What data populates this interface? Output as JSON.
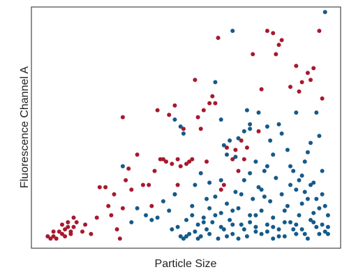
{
  "chart_data": {
    "type": "scatter",
    "title": "",
    "xlabel": "Particle Size",
    "ylabel": "Fluorescence Channel A",
    "xlim": [
      0,
      1
    ],
    "ylim": [
      0,
      1
    ],
    "grid": false,
    "ticks_shown": false,
    "colors": {
      "red": "#a6192e",
      "blue": "#155a8a",
      "frame": "#222222"
    },
    "series": [
      {
        "color": "#a6192e",
        "points": [
          [
            0.02,
            0.03
          ],
          [
            0.03,
            0.02
          ],
          [
            0.04,
            0.03
          ],
          [
            0.05,
            0.02
          ],
          [
            0.04,
            0.05
          ],
          [
            0.06,
            0.05
          ],
          [
            0.07,
            0.04
          ],
          [
            0.08,
            0.03
          ],
          [
            0.07,
            0.08
          ],
          [
            0.08,
            0.06
          ],
          [
            0.09,
            0.07
          ],
          [
            0.11,
            0.07
          ],
          [
            0.1,
            0.05
          ],
          [
            0.09,
            0.09
          ],
          [
            0.12,
            0.09
          ],
          [
            0.11,
            0.11
          ],
          [
            0.1,
            0.04
          ],
          [
            0.14,
            0.05
          ],
          [
            0.15,
            0.08
          ],
          [
            0.17,
            0.04
          ],
          [
            0.19,
            0.11
          ],
          [
            0.2,
            0.24
          ],
          [
            0.22,
            0.24
          ],
          [
            0.23,
            0.16
          ],
          [
            0.25,
            0.21
          ],
          [
            0.24,
            0.12
          ],
          [
            0.26,
            0.06
          ],
          [
            0.27,
            0.02
          ],
          [
            0.28,
            0.15
          ],
          [
            0.29,
            0.27
          ],
          [
            0.3,
            0.32
          ],
          [
            0.28,
            0.54
          ],
          [
            0.31,
            0.23
          ],
          [
            0.33,
            0.38
          ],
          [
            0.35,
            0.25
          ],
          [
            0.37,
            0.25
          ],
          [
            0.38,
            0.16
          ],
          [
            0.39,
            0.31
          ],
          [
            0.41,
            0.36
          ],
          [
            0.4,
            0.57
          ],
          [
            0.42,
            0.36
          ],
          [
            0.43,
            0.35
          ],
          [
            0.44,
            0.55
          ],
          [
            0.46,
            0.59
          ],
          [
            0.45,
            0.34
          ],
          [
            0.47,
            0.25
          ],
          [
            0.46,
            0.21
          ],
          [
            0.47,
            0.36
          ],
          [
            0.48,
            0.33
          ],
          [
            0.49,
            0.49
          ],
          [
            0.5,
            0.34
          ],
          [
            0.51,
            0.35
          ],
          [
            0.52,
            0.36
          ],
          [
            0.53,
            0.7
          ],
          [
            0.54,
            0.54
          ],
          [
            0.55,
            0.49
          ],
          [
            0.56,
            0.57
          ],
          [
            0.57,
            0.35
          ],
          [
            0.58,
            0.6
          ],
          [
            0.59,
            0.63
          ],
          [
            0.6,
            0.6
          ],
          [
            0.61,
            0.88
          ],
          [
            0.62,
            0.23
          ],
          [
            0.63,
            0.25
          ],
          [
            0.64,
            0.41
          ],
          [
            0.66,
            0.36
          ],
          [
            0.68,
            0.31
          ],
          [
            0.67,
            0.4
          ],
          [
            0.7,
            0.36
          ],
          [
            0.69,
            0.44
          ],
          [
            0.71,
            0.41
          ],
          [
            0.73,
            0.81
          ],
          [
            0.75,
            0.48
          ],
          [
            0.76,
            0.66
          ],
          [
            0.78,
            0.91
          ],
          [
            0.8,
            0.9
          ],
          [
            0.82,
            0.85
          ],
          [
            0.81,
            0.81
          ],
          [
            0.83,
            0.87
          ],
          [
            0.86,
            0.67
          ],
          [
            0.88,
            0.76
          ],
          [
            0.9,
            0.69
          ],
          [
            0.89,
            0.65
          ],
          [
            0.92,
            0.73
          ],
          [
            0.93,
            0.7
          ],
          [
            0.94,
            0.75
          ],
          [
            0.96,
            0.91
          ],
          [
            0.97,
            0.62
          ]
        ]
      },
      {
        "color": "#155a8a",
        "points": [
          [
            0.46,
            0.53
          ],
          [
            0.48,
            0.5
          ],
          [
            0.49,
            0.47
          ],
          [
            0.47,
            0.07
          ],
          [
            0.48,
            0.03
          ],
          [
            0.49,
            0.02
          ],
          [
            0.5,
            0.1
          ],
          [
            0.51,
            0.04
          ],
          [
            0.52,
            0.12
          ],
          [
            0.53,
            0.05
          ],
          [
            0.54,
            0.08
          ],
          [
            0.55,
            0.03
          ],
          [
            0.56,
            0.11
          ],
          [
            0.57,
            0.06
          ],
          [
            0.58,
            0.15
          ],
          [
            0.59,
            0.09
          ],
          [
            0.6,
            0.2
          ],
          [
            0.61,
            0.02
          ],
          [
            0.62,
            0.13
          ],
          [
            0.63,
            0.06
          ],
          [
            0.64,
            0.17
          ],
          [
            0.65,
            0.1
          ],
          [
            0.66,
            0.04
          ],
          [
            0.67,
            0.22
          ],
          [
            0.68,
            0.15
          ],
          [
            0.69,
            0.08
          ],
          [
            0.7,
            0.27
          ],
          [
            0.71,
            0.03
          ],
          [
            0.72,
            0.12
          ],
          [
            0.73,
            0.19
          ],
          [
            0.74,
            0.07
          ],
          [
            0.75,
            0.24
          ],
          [
            0.76,
            0.14
          ],
          [
            0.77,
            0.31
          ],
          [
            0.78,
            0.05
          ],
          [
            0.79,
            0.18
          ],
          [
            0.8,
            0.11
          ],
          [
            0.81,
            0.28
          ],
          [
            0.82,
            0.03
          ],
          [
            0.83,
            0.21
          ],
          [
            0.84,
            0.09
          ],
          [
            0.85,
            0.16
          ],
          [
            0.86,
            0.33
          ],
          [
            0.87,
            0.06
          ],
          [
            0.88,
            0.23
          ],
          [
            0.89,
            0.12
          ],
          [
            0.9,
            0.29
          ],
          [
            0.91,
            0.04
          ],
          [
            0.92,
            0.19
          ],
          [
            0.93,
            0.1
          ],
          [
            0.94,
            0.26
          ],
          [
            0.95,
            0.07
          ],
          [
            0.96,
            0.15
          ],
          [
            0.97,
            0.31
          ],
          [
            0.98,
            0.05
          ],
          [
            0.99,
            0.12
          ],
          [
            0.62,
            0.53
          ],
          [
            0.65,
            0.44
          ],
          [
            0.7,
            0.48
          ],
          [
            0.74,
            0.35
          ],
          [
            0.78,
            0.33
          ],
          [
            0.82,
            0.51
          ],
          [
            0.85,
            0.4
          ],
          [
            0.91,
            0.35
          ],
          [
            0.93,
            0.43
          ],
          [
            0.99,
            0.04
          ],
          [
            0.57,
            0.19
          ],
          [
            0.62,
            0.27
          ],
          [
            0.66,
            0.14
          ],
          [
            0.69,
            0.21
          ],
          [
            0.72,
            0.3
          ],
          [
            0.74,
            0.05
          ],
          [
            0.77,
            0.2
          ],
          [
            0.8,
            0.07
          ],
          [
            0.84,
            0.14
          ],
          [
            0.88,
            0.08
          ],
          [
            0.9,
            0.17
          ],
          [
            0.94,
            0.13
          ],
          [
            0.97,
            0.21
          ],
          [
            0.53,
            0.25
          ],
          [
            0.55,
            0.3
          ],
          [
            0.58,
            0.26
          ],
          [
            0.64,
            0.38
          ],
          [
            0.68,
            0.45
          ],
          [
            0.72,
            0.49
          ],
          [
            0.76,
            0.23
          ],
          [
            0.8,
            0.38
          ],
          [
            0.86,
            0.25
          ],
          [
            0.92,
            0.39
          ],
          [
            0.96,
            0.46
          ],
          [
            0.6,
            0.69
          ],
          [
            0.66,
            0.91
          ],
          [
            0.72,
            0.51
          ],
          [
            0.78,
            0.5
          ],
          [
            0.83,
            0.47
          ],
          [
            0.88,
            0.56
          ],
          [
            0.95,
            0.56
          ],
          [
            0.98,
            0.99
          ],
          [
            0.28,
            0.33
          ],
          [
            0.31,
            0.09
          ],
          [
            0.33,
            0.15
          ],
          [
            0.36,
            0.12
          ],
          [
            0.38,
            0.1
          ],
          [
            0.4,
            0.11
          ],
          [
            0.42,
            0.18
          ],
          [
            0.44,
            0.14
          ],
          [
            0.45,
            0.06
          ],
          [
            0.46,
            0.21
          ],
          [
            0.5,
            0.03
          ],
          [
            0.52,
            0.16
          ],
          [
            0.54,
            0.02
          ],
          [
            0.56,
            0.09
          ],
          [
            0.58,
            0.04
          ],
          [
            0.6,
            0.12
          ],
          [
            0.62,
            0.07
          ],
          [
            0.64,
            0.03
          ],
          [
            0.66,
            0.08
          ],
          [
            0.68,
            0.02
          ],
          [
            0.7,
            0.06
          ],
          [
            0.72,
            0.09
          ],
          [
            0.74,
            0.12
          ],
          [
            0.76,
            0.04
          ],
          [
            0.78,
            0.08
          ],
          [
            0.8,
            0.02
          ],
          [
            0.82,
            0.06
          ],
          [
            0.84,
            0.03
          ],
          [
            0.86,
            0.09
          ],
          [
            0.88,
            0.04
          ],
          [
            0.9,
            0.06
          ],
          [
            0.92,
            0.02
          ],
          [
            0.94,
            0.09
          ],
          [
            0.96,
            0.04
          ],
          [
            0.97,
            0.08
          ],
          [
            0.99,
            0.07
          ],
          [
            0.63,
            0.42
          ],
          [
            0.67,
            0.37
          ],
          [
            0.71,
            0.57
          ],
          [
            0.75,
            0.56
          ],
          [
            0.79,
            0.44
          ],
          [
            0.87,
            0.31
          ],
          [
            0.89,
            0.27
          ],
          [
            0.91,
            0.22
          ],
          [
            0.93,
            0.25
          ],
          [
            0.95,
            0.19
          ],
          [
            0.98,
            0.16
          ]
        ]
      }
    ]
  }
}
